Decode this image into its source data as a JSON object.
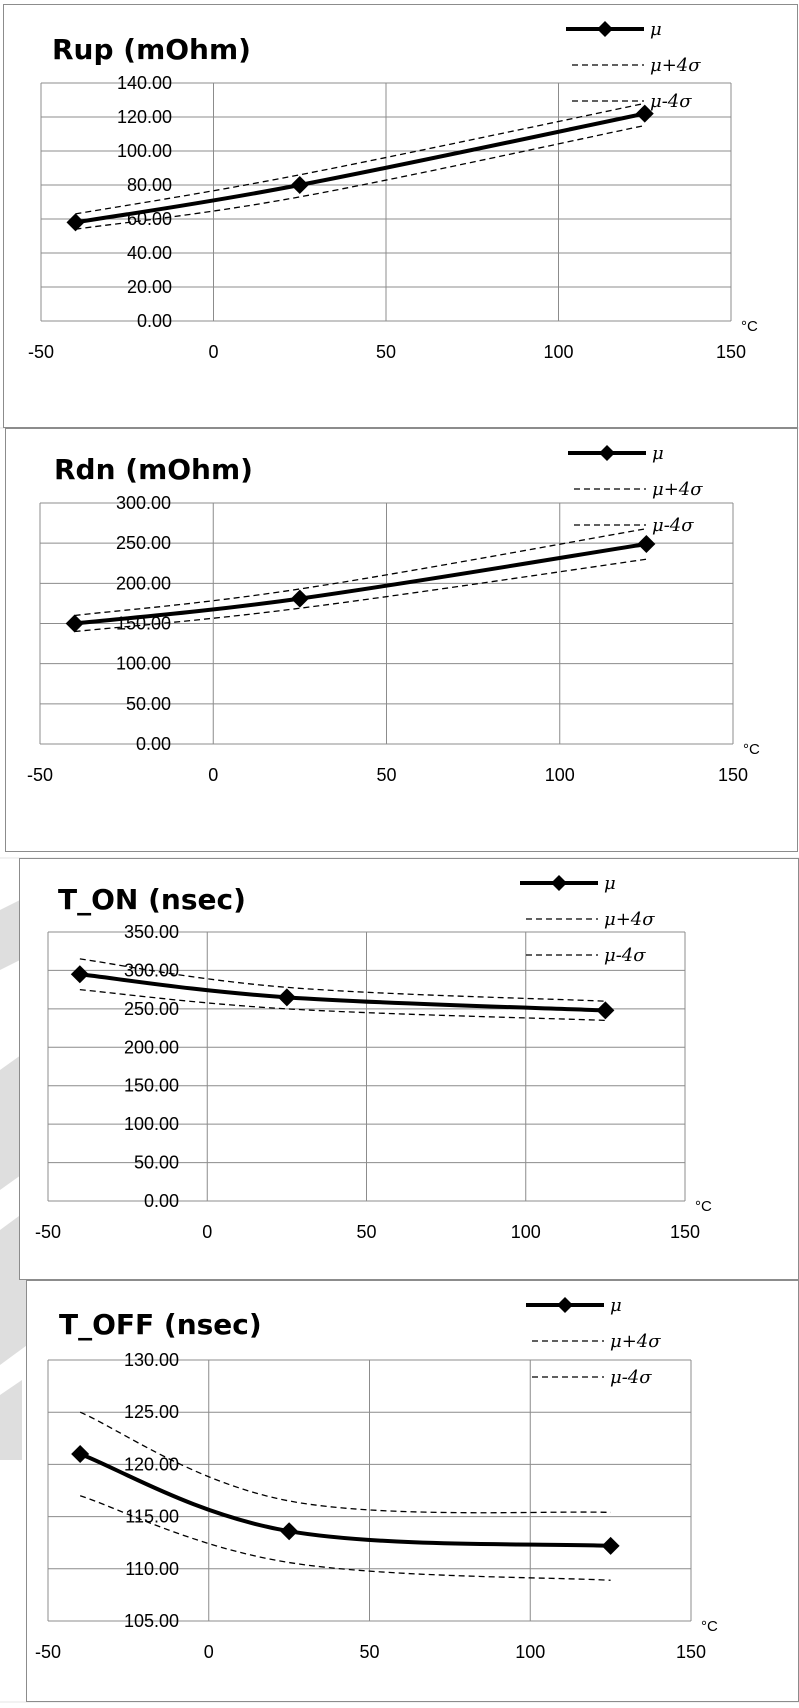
{
  "colors": {
    "mean": "#000000",
    "band": "#000000",
    "grid": "#8c8c8c",
    "border": "#8c8c8c",
    "decor": "#dcdcdc"
  },
  "chart_data": [
    {
      "type": "line",
      "title": "Rup (mOhm)",
      "x_unit": "°C",
      "xlim": [
        -50,
        150
      ],
      "x_ticks": [
        "-50",
        "0",
        "50",
        "100",
        "150"
      ],
      "ylim": [
        0,
        140
      ],
      "y_ticks": [
        "0.00",
        "20.00",
        "40.00",
        "60.00",
        "80.00",
        "100.00",
        "120.00",
        "140.00"
      ],
      "grid": true,
      "legend_position": "top-right",
      "x": [
        -40,
        25,
        125
      ],
      "series": [
        {
          "name": "μ",
          "style": "solid-marker",
          "values": [
            58,
            80,
            122
          ]
        },
        {
          "name": "μ+4σ",
          "style": "dashed",
          "values": [
            63,
            86,
            128
          ]
        },
        {
          "name": "μ-4σ",
          "style": "dashed",
          "values": [
            54,
            73,
            115
          ]
        }
      ]
    },
    {
      "type": "line",
      "title": "Rdn (mOhm)",
      "x_unit": "°C",
      "xlim": [
        -50,
        150
      ],
      "x_ticks": [
        "-50",
        "0",
        "50",
        "100",
        "150"
      ],
      "ylim": [
        0,
        300
      ],
      "y_ticks": [
        "0.00",
        "50.00",
        "100.00",
        "150.00",
        "200.00",
        "250.00",
        "300.00"
      ],
      "grid": true,
      "legend_position": "top-right",
      "x": [
        -40,
        25,
        125
      ],
      "series": [
        {
          "name": "μ",
          "style": "solid-marker",
          "values": [
            150,
            181,
            249
          ]
        },
        {
          "name": "μ+4σ",
          "style": "dashed",
          "values": [
            160,
            193,
            268
          ]
        },
        {
          "name": "μ-4σ",
          "style": "dashed",
          "values": [
            140,
            169,
            230
          ]
        }
      ]
    },
    {
      "type": "line",
      "title": "T_ON (nsec)",
      "x_unit": "°C",
      "xlim": [
        -50,
        150
      ],
      "x_ticks": [
        "-50",
        "0",
        "50",
        "100",
        "150"
      ],
      "ylim": [
        0,
        350
      ],
      "y_ticks": [
        "0.00",
        "50.00",
        "100.00",
        "150.00",
        "200.00",
        "250.00",
        "300.00",
        "350.00"
      ],
      "grid": true,
      "legend_position": "top-right",
      "x": [
        -40,
        25,
        125
      ],
      "series": [
        {
          "name": "μ",
          "style": "solid-marker",
          "values": [
            295,
            265,
            248
          ]
        },
        {
          "name": "μ+4σ",
          "style": "dashed",
          "values": [
            315,
            278,
            260
          ]
        },
        {
          "name": "μ-4σ",
          "style": "dashed",
          "values": [
            275,
            250,
            235
          ]
        }
      ]
    },
    {
      "type": "line",
      "title": "T_OFF (nsec)",
      "x_unit": "°C",
      "xlim": [
        -50,
        150
      ],
      "x_ticks": [
        "-50",
        "0",
        "50",
        "100",
        "150"
      ],
      "ylim": [
        105,
        130
      ],
      "y_ticks": [
        "105.00",
        "110.00",
        "115.00",
        "120.00",
        "125.00",
        "130.00"
      ],
      "grid": true,
      "legend_position": "top-right",
      "x": [
        -40,
        25,
        125
      ],
      "series": [
        {
          "name": "μ",
          "style": "solid-marker",
          "values": [
            121,
            113.6,
            112.2
          ]
        },
        {
          "name": "μ+4σ",
          "style": "dashed",
          "values": [
            125,
            116.5,
            115.4
          ]
        },
        {
          "name": "μ-4σ",
          "style": "dashed",
          "values": [
            117,
            110.6,
            108.9
          ]
        }
      ]
    }
  ]
}
